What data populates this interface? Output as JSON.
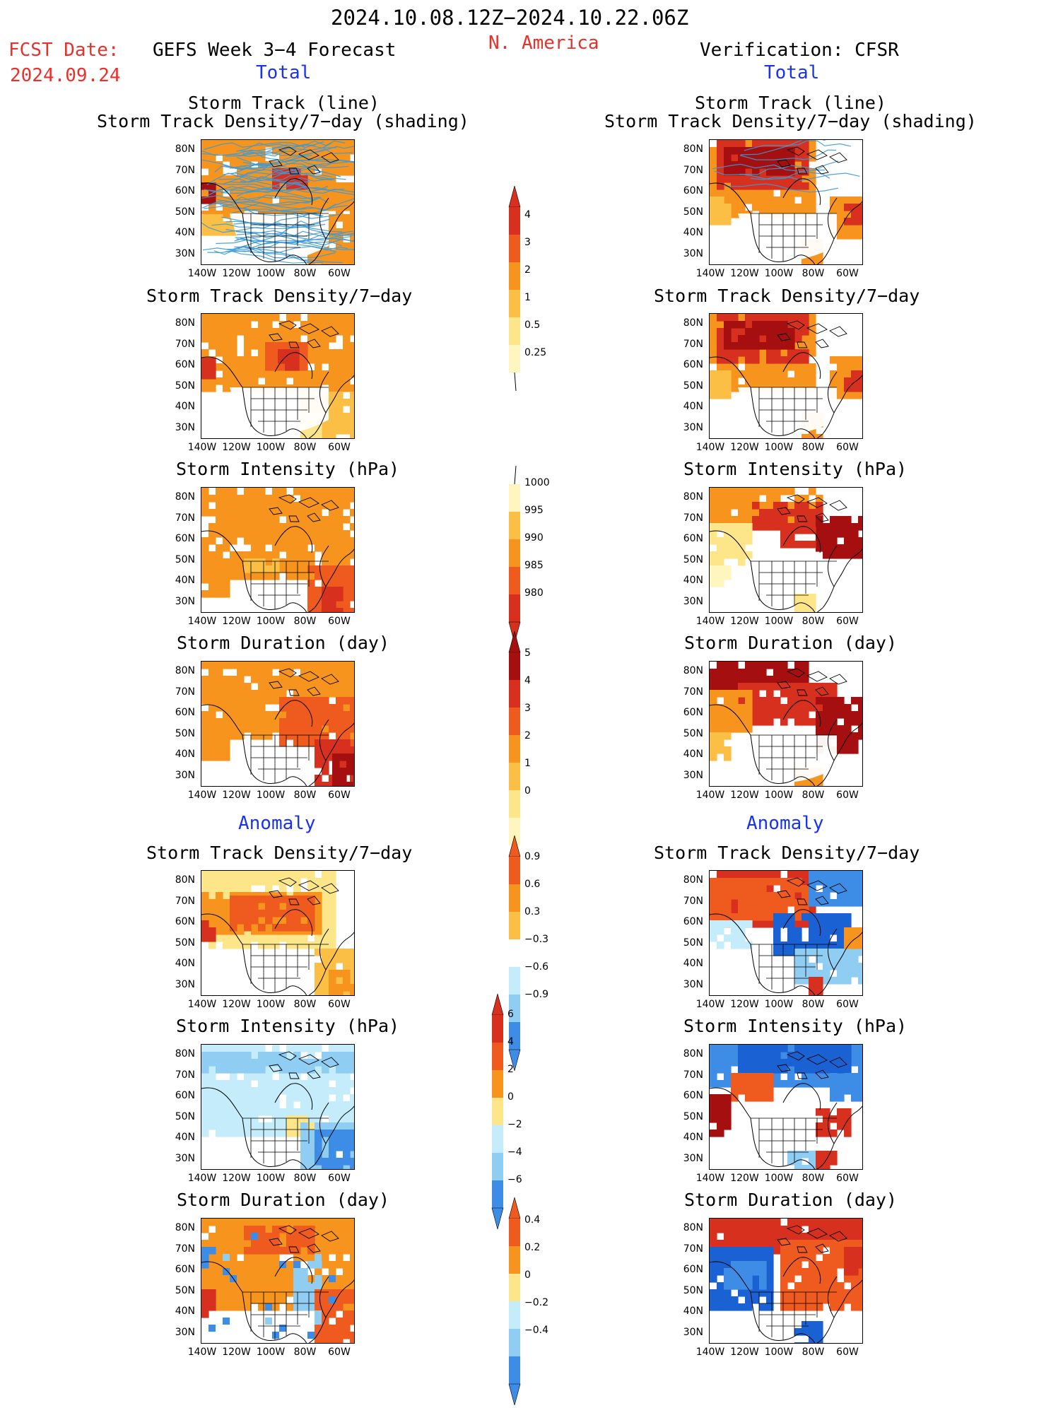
{
  "header": {
    "date_range": "2024.10.08.12Z−2024.10.22.06Z",
    "region": "N. America",
    "fcst_label": "FCST Date:",
    "fcst_date": "2024.09.24",
    "forecast_title": "GEFS Week 3−4 Forecast",
    "verification_title": "Verification: CFSR",
    "left_total": "Total",
    "right_total": "Total",
    "left_anomaly": "Anomaly",
    "right_anomaly": "Anomaly"
  },
  "panel_titles": {
    "track_line": "Storm Track (line)",
    "track_shading": "Storm Track Density/7−day (shading)",
    "density": "Storm Track Density/7−day",
    "intensity": "Storm Intensity (hPa)",
    "duration": "Storm Duration (day)"
  },
  "axes": {
    "lat_labels": [
      "80N",
      "70N",
      "60N",
      "50N",
      "40N",
      "30N"
    ],
    "lon_labels": [
      "140W",
      "120W",
      "100W",
      "80W",
      "60W"
    ]
  },
  "colorbars": {
    "density_total": [
      "4",
      "3",
      "2",
      "1",
      "0.5",
      "0.25"
    ],
    "intensity_total": [
      "1000",
      "995",
      "990",
      "985",
      "980"
    ],
    "duration_total": [
      "5",
      "4",
      "3",
      "2",
      "1",
      "0"
    ],
    "density_anom": [
      "0.9",
      "0.6",
      "0.3",
      "−0.3",
      "−0.6",
      "−0.9"
    ],
    "intensity_anom": [
      "6",
      "4",
      "2",
      "0",
      "−2",
      "−4",
      "−6"
    ],
    "duration_anom": [
      "0.4",
      "0.2",
      "0",
      "−0.2",
      "−0.4"
    ]
  },
  "colors": {
    "dark_red": "#a50f0f",
    "red": "#d7301f",
    "orange_red": "#ef5a1e",
    "orange": "#f7941d",
    "light_orange": "#fbbf45",
    "yellow": "#fde58a",
    "pale_yellow": "#fff6bf",
    "pale_blue": "#c4ecfb",
    "light_blue": "#8fcdf3",
    "blue": "#3d8de6",
    "dark_blue": "#1a62d4",
    "track_line": "#3a9ad9"
  }
}
